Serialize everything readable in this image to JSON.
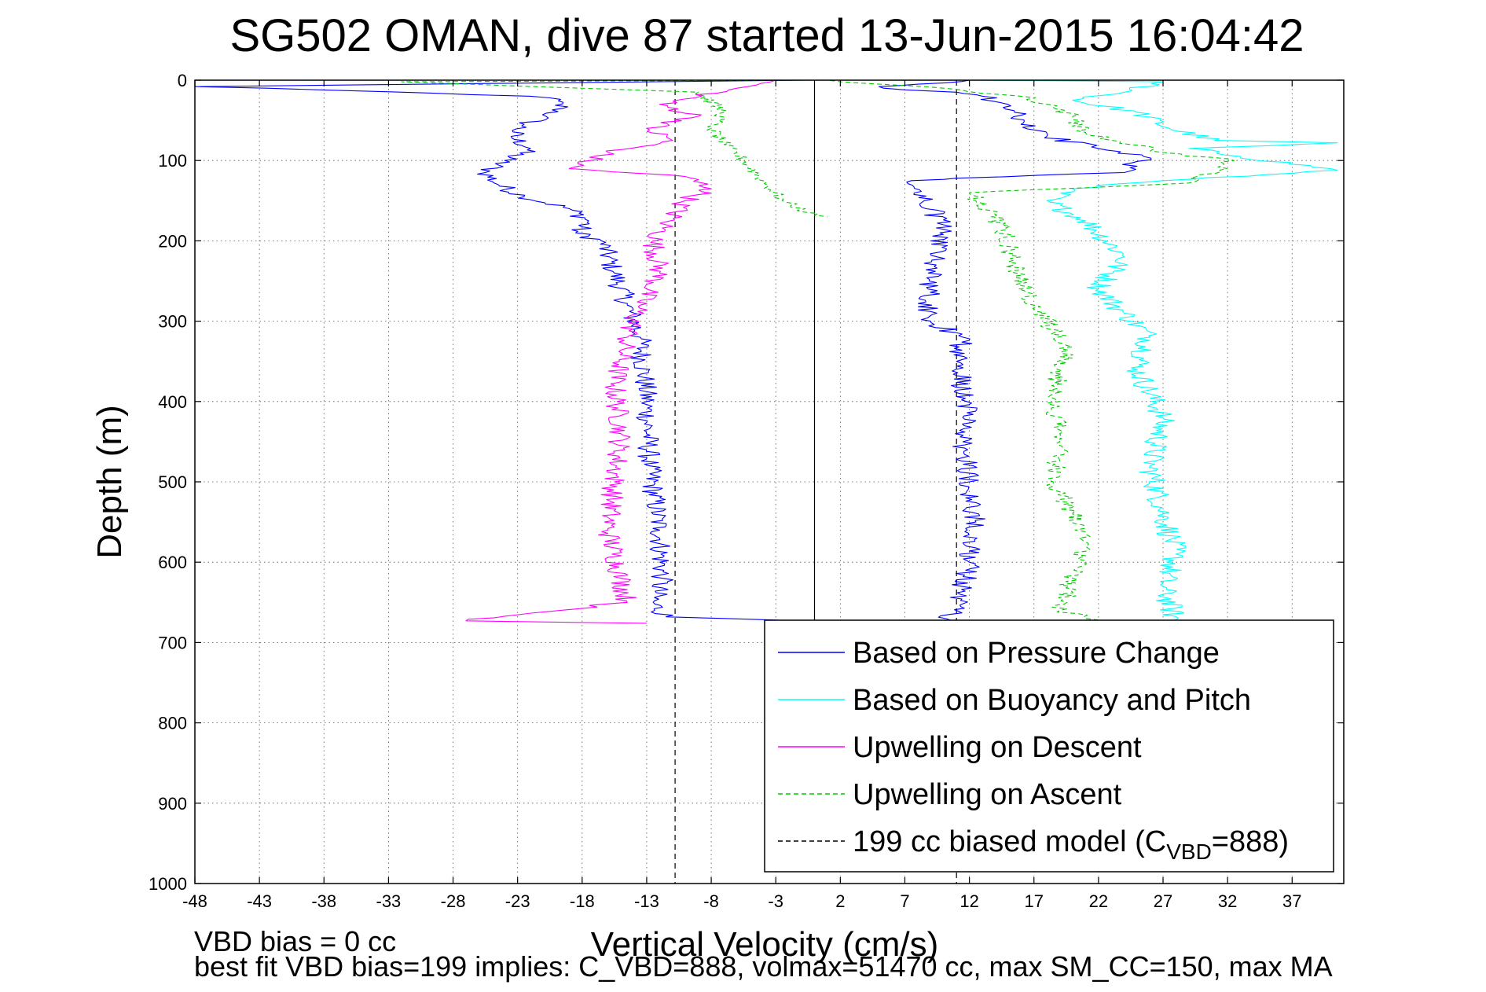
{
  "chart_data": {
    "type": "line",
    "title": "SG502 OMAN, dive 87 started 13-Jun-2015 16:04:42",
    "xlabel": "Vertical Velocity (cm/s)",
    "ylabel": "Depth (m)",
    "xlim": [
      -48,
      41
    ],
    "ylim": [
      0,
      1000
    ],
    "y_reversed": true,
    "grid": true,
    "legend_position": "lower-right",
    "x_ticks": [
      -48,
      -43,
      -38,
      -33,
      -28,
      -23,
      -18,
      -13,
      -8,
      -3,
      2,
      7,
      12,
      17,
      22,
      27,
      32,
      37
    ],
    "y_ticks": [
      0,
      100,
      200,
      300,
      400,
      500,
      600,
      700,
      800,
      900,
      1000
    ],
    "reference_lines": [
      {
        "type": "vertical",
        "x": -10.8,
        "y_range": [
          0,
          1000
        ],
        "style": "dashed",
        "color": "#000000"
      },
      {
        "type": "vertical",
        "x": 11.0,
        "y_range": [
          0,
          1000
        ],
        "style": "dashed",
        "color": "#000000"
      },
      {
        "type": "vertical",
        "x": 0,
        "y_range": [
          0,
          675
        ],
        "style": "solid",
        "color": "#000000"
      }
    ],
    "series": [
      {
        "name": "Based on Pressure Change",
        "color": "#0000ff",
        "style": "solid",
        "noise": 0.9,
        "points": [
          [
            -0.5,
            0
          ],
          [
            -48,
            8
          ],
          [
            -34,
            14
          ],
          [
            -22,
            20
          ],
          [
            -20.5,
            22
          ],
          [
            -19.5,
            35
          ],
          [
            -20.8,
            45
          ],
          [
            -22.5,
            55
          ],
          [
            -23.5,
            70
          ],
          [
            -22,
            85
          ],
          [
            -24,
            100
          ],
          [
            -25.5,
            115
          ],
          [
            -24.5,
            130
          ],
          [
            -22.5,
            145
          ],
          [
            -19,
            160
          ],
          [
            -17.5,
            175
          ],
          [
            -18.5,
            190
          ],
          [
            -16.5,
            200
          ],
          [
            -15.5,
            240
          ],
          [
            -14.5,
            280
          ],
          [
            -13.5,
            320
          ],
          [
            -13,
            400
          ],
          [
            -12.8,
            480
          ],
          [
            -12,
            560
          ],
          [
            -11.8,
            620
          ],
          [
            -12.5,
            650
          ],
          [
            -11.5,
            668
          ],
          [
            -3,
            672
          ],
          [
            0,
            674
          ]
        ]
      },
      {
        "name": "Based on Pressure Change",
        "color": "#0000ff",
        "style": "solid",
        "noise": 0.9,
        "points": [
          [
            10.5,
            672
          ],
          [
            10.5,
            665
          ],
          [
            11.3,
            640
          ],
          [
            12,
            600
          ],
          [
            12.5,
            550
          ],
          [
            12,
            500
          ],
          [
            11.5,
            450
          ],
          [
            11.8,
            400
          ],
          [
            11,
            350
          ],
          [
            11.5,
            320
          ],
          [
            9,
            300
          ],
          [
            8.8,
            260
          ],
          [
            9.5,
            220
          ],
          [
            10,
            180
          ],
          [
            8.5,
            150
          ],
          [
            7.5,
            125
          ],
          [
            11,
            122
          ],
          [
            24,
            115
          ],
          [
            25.5,
            95
          ],
          [
            22,
            85
          ],
          [
            18,
            70
          ],
          [
            16,
            55
          ],
          [
            15.5,
            40
          ],
          [
            13,
            20
          ],
          [
            11,
            15
          ],
          [
            7,
            12
          ],
          [
            5,
            8
          ],
          [
            8,
            5
          ],
          [
            12,
            0
          ]
        ]
      },
      {
        "name": "Based on Buoyancy and Pitch",
        "color": "#00ffff",
        "style": "solid",
        "noise": 1.0,
        "points": [
          [
            12,
            0
          ],
          [
            27,
            2
          ],
          [
            24,
            15
          ],
          [
            20,
            25
          ],
          [
            25,
            40
          ],
          [
            27.5,
            60
          ],
          [
            31,
            75
          ],
          [
            40.5,
            78
          ],
          [
            29,
            85
          ],
          [
            33,
            95
          ],
          [
            40.5,
            112
          ],
          [
            27,
            125
          ],
          [
            20,
            135
          ],
          [
            18,
            150
          ],
          [
            21,
            175
          ],
          [
            24,
            220
          ],
          [
            22,
            260
          ],
          [
            24,
            290
          ],
          [
            26,
            320
          ],
          [
            25,
            360
          ],
          [
            27,
            420
          ],
          [
            26,
            480
          ],
          [
            27,
            540
          ],
          [
            28,
            590
          ],
          [
            27,
            630
          ],
          [
            28,
            675
          ],
          [
            24,
            690
          ]
        ]
      },
      {
        "name": "Upwelling on Descent",
        "color": "#ff00ff",
        "style": "solid",
        "noise": 0.9,
        "points": [
          [
            -3,
            0
          ],
          [
            -6,
            10
          ],
          [
            -12,
            30
          ],
          [
            -9,
            45
          ],
          [
            -13,
            60
          ],
          [
            -11,
            75
          ],
          [
            -16,
            90
          ],
          [
            -19,
            110
          ],
          [
            -10,
            120
          ],
          [
            -8,
            135
          ],
          [
            -10,
            150
          ],
          [
            -11.5,
            180
          ],
          [
            -12.5,
            200
          ],
          [
            -12,
            240
          ],
          [
            -13.5,
            280
          ],
          [
            -14.5,
            320
          ],
          [
            -15.5,
            380
          ],
          [
            -15,
            440
          ],
          [
            -15.5,
            500
          ],
          [
            -16,
            560
          ],
          [
            -15,
            620
          ],
          [
            -14.5,
            650
          ],
          [
            -27,
            673
          ],
          [
            -13,
            676
          ]
        ]
      },
      {
        "name": "Upwelling on Ascent",
        "color": "#00cc00",
        "style": "dashed",
        "noise": 0.6,
        "points": [
          [
            1,
            0
          ],
          [
            -32,
            2
          ],
          [
            -9,
            15
          ],
          [
            -7,
            40
          ],
          [
            -8,
            60
          ],
          [
            -7,
            80
          ],
          [
            -5.5,
            100
          ],
          [
            -4,
            125
          ],
          [
            -2.5,
            150
          ],
          [
            0,
            168
          ],
          [
            1,
            170
          ]
        ]
      },
      {
        "name": "Upwelling on Ascent",
        "color": "#00cc00",
        "style": "dashed",
        "noise": 0.8,
        "points": [
          [
            22,
            672
          ],
          [
            19,
            660
          ],
          [
            20,
            620
          ],
          [
            21,
            580
          ],
          [
            20,
            540
          ],
          [
            18.5,
            500
          ],
          [
            19,
            440
          ],
          [
            18.5,
            390
          ],
          [
            19.5,
            330
          ],
          [
            17,
            280
          ],
          [
            15.5,
            230
          ],
          [
            14.5,
            180
          ],
          [
            12.5,
            150
          ],
          [
            12,
            140
          ],
          [
            29,
            128
          ],
          [
            32.5,
            100
          ],
          [
            27,
            90
          ],
          [
            21,
            65
          ],
          [
            20,
            45
          ],
          [
            18,
            30
          ],
          [
            16,
            20
          ],
          [
            10,
            10
          ],
          [
            1,
            0
          ]
        ]
      }
    ],
    "legend": [
      {
        "label": "Based on Pressure Change",
        "color": "#0000ff",
        "style": "solid"
      },
      {
        "label": "Based on Buoyancy and Pitch",
        "color": "#00ffff",
        "style": "solid"
      },
      {
        "label": "Upwelling on Descent",
        "color": "#ff00ff",
        "style": "solid"
      },
      {
        "label": "Upwelling on Ascent",
        "color": "#00cc00",
        "style": "dashed"
      },
      {
        "label_prefix": "199 cc biased model (C",
        "label_sub": "VBD",
        "label_suffix": "=888)",
        "color": "#000000",
        "style": "dashed"
      }
    ],
    "annotations": [
      "VBD bias = 0 cc",
      "best fit VBD bias=199 implies: C_VBD=888, volmax=51470 cc, max SM_CC=150, max MA"
    ]
  }
}
